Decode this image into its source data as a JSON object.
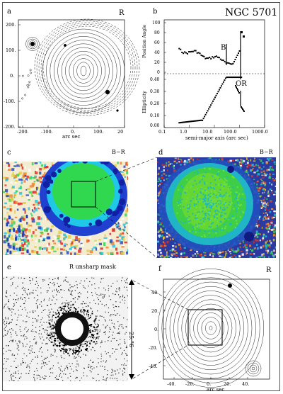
{
  "panels": {
    "a": {
      "letter": "a",
      "band": "R",
      "yticks": [
        "200.",
        "100.",
        "0.",
        "-100.",
        "-200."
      ],
      "xticks": [
        "-200.",
        "-100.",
        "0.",
        "100.",
        "20"
      ],
      "xlabel": "arc sec"
    },
    "b": {
      "letter": "b",
      "title": "NGC 5701",
      "top_ylabel": "Position Angle",
      "top_yticks": [
        "100",
        "80",
        "60",
        "40",
        "20",
        "0"
      ],
      "bottom_ylabel": "Ellipticity",
      "bottom_yticks": [
        "0.40",
        "0.30",
        "0.20",
        "0.10",
        "0.00"
      ],
      "xticks": [
        "0.1",
        "1.0",
        "10.0",
        "100.0",
        "1000.0"
      ],
      "xlabel": "semi-major axis (arc sec)",
      "marker_b": "B",
      "marker_or": "OR"
    },
    "c": {
      "letter": "c",
      "band": "B−R"
    },
    "d": {
      "letter": "d",
      "band": "B−R"
    },
    "e": {
      "letter": "e",
      "band": "R unsharp mask",
      "scale_label": "25.”6"
    },
    "f": {
      "letter": "f",
      "band": "R",
      "yticks": [
        "40.",
        "20.",
        "0.",
        "-20.",
        "-40."
      ],
      "xticks": [
        "-40.",
        "-20.",
        "0.",
        "20.",
        "40."
      ],
      "xlabel": "arc sec"
    }
  },
  "colors": {
    "bg": "#ffffff",
    "blue": "#1030c0",
    "green": "#20d040",
    "cyan": "#20c8e8",
    "red": "#e02020",
    "yellow": "#e0d040"
  }
}
